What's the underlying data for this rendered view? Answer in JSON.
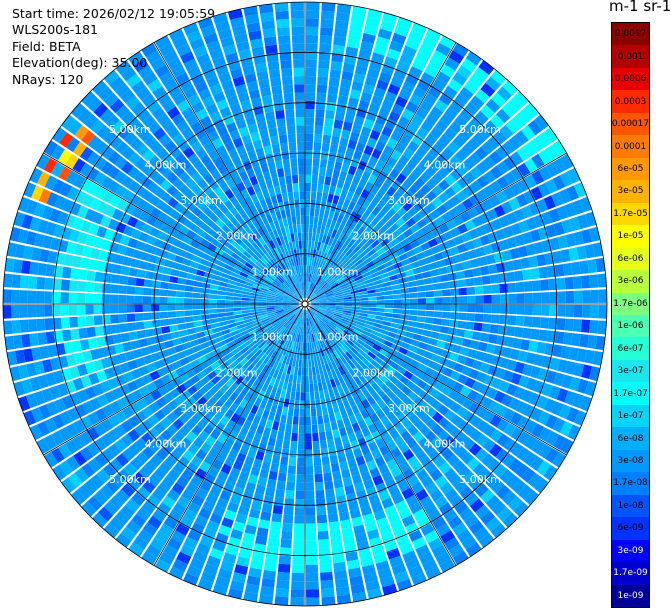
{
  "header": {
    "start_time": "Start time: 2026/02/12 19:05:59",
    "instrument": "WLS200s-181",
    "field": "Field: BETA",
    "elevation": "Elevation(deg): 35.00",
    "nrays": "NRays: 120"
  },
  "colorbar": {
    "title": "m-1 sr-1",
    "entries": [
      {
        "label": "0.0017",
        "color": "#8b0000"
      },
      {
        "label": "0.001",
        "color": "#b30000"
      },
      {
        "label": "0.0006",
        "color": "#e60000"
      },
      {
        "label": "0.0003",
        "color": "#ff2a00"
      },
      {
        "label": "0.00017",
        "color": "#ff5500"
      },
      {
        "label": "0.0001",
        "color": "#ff7a00"
      },
      {
        "label": "6e-05",
        "color": "#ff9900"
      },
      {
        "label": "3e-05",
        "color": "#ffb300"
      },
      {
        "label": "1.7e-05",
        "color": "#ffd700"
      },
      {
        "label": "1e-05",
        "color": "#ffff00"
      },
      {
        "label": "6e-06",
        "color": "#e6ff1a"
      },
      {
        "label": "3e-06",
        "color": "#b8ff3c"
      },
      {
        "label": "1.7e-06",
        "color": "#7fff7f"
      },
      {
        "label": "1e-06",
        "color": "#4dffb3"
      },
      {
        "label": "6e-07",
        "color": "#26ffd6"
      },
      {
        "label": "3e-07",
        "color": "#1ae6f0"
      },
      {
        "label": "1.7e-07",
        "color": "#00ffff"
      },
      {
        "label": "1e-07",
        "color": "#00d4ff"
      },
      {
        "label": "6e-08",
        "color": "#00b0ff"
      },
      {
        "label": "3e-08",
        "color": "#0099ff"
      },
      {
        "label": "1.7e-08",
        "color": "#0080ff"
      },
      {
        "label": "1e-08",
        "color": "#0055ff"
      },
      {
        "label": "6e-09",
        "color": "#0033ff"
      },
      {
        "label": "3e-09",
        "color": "#0000ff"
      },
      {
        "label": "1.7e-09",
        "color": "#0000cc"
      },
      {
        "label": "1e-09",
        "color": "#000099"
      }
    ]
  },
  "chart_data": {
    "type": "heatmap",
    "projection": "polar (PPI scan)",
    "field": "BETA",
    "elevation_deg": 35.0,
    "n_rays": 120,
    "range_max_km": 6.0,
    "range_rings_km": [
      1.0,
      2.0,
      3.0,
      4.0,
      5.0,
      6.0
    ],
    "ring_labels": [
      "1.00km",
      "2.00km",
      "3.00km",
      "4.00km",
      "5.00km"
    ],
    "radial_lines_deg": [
      0,
      30,
      60,
      90,
      120,
      150,
      180,
      210,
      240,
      270,
      300,
      330
    ],
    "dominant_value": "3e-08",
    "features": [
      {
        "description_value": "1.7e-07 to 3e-07",
        "range_km": [
          4.0,
          5.0
        ],
        "azimuth_deg": [
          250,
          300
        ]
      },
      {
        "description_value": "1e-05 to 0.0003",
        "range_km": [
          5.3,
          5.8
        ],
        "azimuth_deg": [
          290,
          310
        ]
      },
      {
        "description_value": "1.7e-07",
        "range_km": [
          4.4,
          5.4
        ],
        "azimuth_deg": [
          150,
          200
        ]
      },
      {
        "description_value": "1.7e-07",
        "range_km": [
          5.2,
          6.0
        ],
        "azimuth_deg": [
          10,
          60
        ]
      }
    ]
  }
}
